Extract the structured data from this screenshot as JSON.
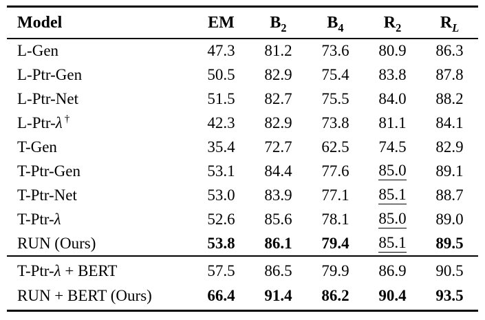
{
  "colors": {
    "background": "#ffffff",
    "text": "#000000",
    "rule": "#000000"
  },
  "table": {
    "header": [
      {
        "base": "Model",
        "sub": ""
      },
      {
        "base": "EM",
        "sub": ""
      },
      {
        "base": "B",
        "sub": "2"
      },
      {
        "base": "B",
        "sub": "4"
      },
      {
        "base": "R",
        "sub": "2"
      },
      {
        "base": "R",
        "sub": "L"
      }
    ],
    "groups": [
      {
        "rows": [
          {
            "label_segments": [
              {
                "t": "L-Gen"
              }
            ],
            "values": [
              {
                "t": "47.3"
              },
              {
                "t": "81.2"
              },
              {
                "t": "73.6"
              },
              {
                "t": "80.9"
              },
              {
                "t": "86.3"
              }
            ]
          },
          {
            "label_segments": [
              {
                "t": "L-Ptr-Gen"
              }
            ],
            "values": [
              {
                "t": "50.5"
              },
              {
                "t": "82.9"
              },
              {
                "t": "75.4"
              },
              {
                "t": "83.8"
              },
              {
                "t": "87.8"
              }
            ]
          },
          {
            "label_segments": [
              {
                "t": "L-Ptr-Net"
              }
            ],
            "values": [
              {
                "t": "51.5"
              },
              {
                "t": "82.7"
              },
              {
                "t": "75.5"
              },
              {
                "t": "84.0"
              },
              {
                "t": "88.2"
              }
            ]
          },
          {
            "label_segments": [
              {
                "t": "L-Ptr-"
              },
              {
                "t": "λ",
                "style": "italic"
              },
              {
                "t": "†",
                "style": "sup"
              }
            ],
            "values": [
              {
                "t": "42.3"
              },
              {
                "t": "82.9"
              },
              {
                "t": "73.8"
              },
              {
                "t": "81.1"
              },
              {
                "t": "84.1"
              }
            ]
          },
          {
            "label_segments": [
              {
                "t": "T-Gen"
              }
            ],
            "values": [
              {
                "t": "35.4"
              },
              {
                "t": "72.7"
              },
              {
                "t": "62.5"
              },
              {
                "t": "74.5"
              },
              {
                "t": "82.9"
              }
            ]
          },
          {
            "label_segments": [
              {
                "t": "T-Ptr-Gen"
              }
            ],
            "values": [
              {
                "t": "53.1"
              },
              {
                "t": "84.4"
              },
              {
                "t": "77.6"
              },
              {
                "t": "85.0",
                "underline": true
              },
              {
                "t": "89.1"
              }
            ]
          },
          {
            "label_segments": [
              {
                "t": "T-Ptr-Net"
              }
            ],
            "values": [
              {
                "t": "53.0"
              },
              {
                "t": "83.9"
              },
              {
                "t": "77.1"
              },
              {
                "t": "85.1",
                "underline": true
              },
              {
                "t": "88.7"
              }
            ]
          },
          {
            "label_segments": [
              {
                "t": "T-Ptr-"
              },
              {
                "t": "λ",
                "style": "italic"
              }
            ],
            "values": [
              {
                "t": "52.6"
              },
              {
                "t": "85.6"
              },
              {
                "t": "78.1"
              },
              {
                "t": "85.0",
                "underline": true
              },
              {
                "t": "89.0"
              }
            ]
          },
          {
            "label_segments": [
              {
                "t": "RUN (Ours)"
              }
            ],
            "values": [
              {
                "t": "53.8",
                "bold": true
              },
              {
                "t": "86.1",
                "bold": true
              },
              {
                "t": "79.4",
                "bold": true
              },
              {
                "t": "85.1",
                "underline": true
              },
              {
                "t": "89.5",
                "bold": true
              }
            ]
          }
        ]
      },
      {
        "rows": [
          {
            "label_segments": [
              {
                "t": "T-Ptr-"
              },
              {
                "t": "λ",
                "style": "italic"
              },
              {
                "t": " + BERT"
              }
            ],
            "values": [
              {
                "t": "57.5"
              },
              {
                "t": "86.5"
              },
              {
                "t": "79.9"
              },
              {
                "t": "86.9"
              },
              {
                "t": "90.5"
              }
            ]
          },
          {
            "label_segments": [
              {
                "t": "RUN + BERT (Ours)"
              }
            ],
            "values": [
              {
                "t": "66.4",
                "bold": true
              },
              {
                "t": "91.4",
                "bold": true
              },
              {
                "t": "86.2",
                "bold": true
              },
              {
                "t": "90.4",
                "bold": true
              },
              {
                "t": "93.5",
                "bold": true
              }
            ]
          }
        ]
      }
    ]
  }
}
